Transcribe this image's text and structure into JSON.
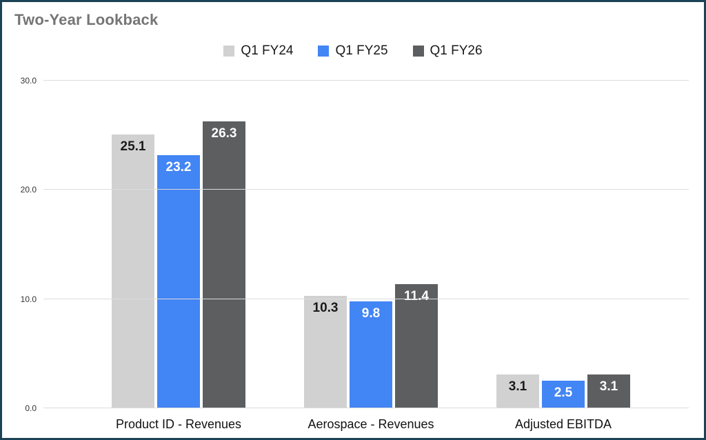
{
  "title": "Two-Year Lookback",
  "colors": {
    "border": "#1c4254",
    "title_text": "#757575",
    "gridline": "#dcdcdc",
    "axis_text": "#333333"
  },
  "chart_data": {
    "type": "bar",
    "title": "Two-Year Lookback",
    "categories": [
      "Product ID - Revenues",
      "Aerospace - Revenues",
      "Adjusted EBITDA"
    ],
    "series": [
      {
        "name": "Q1 FY24",
        "color": "#d1d1d1",
        "label_color": "#1a1a1a",
        "values": [
          25.1,
          10.3,
          3.1
        ]
      },
      {
        "name": "Q1 FY25",
        "color": "#4285f4",
        "label_color": "#ffffff",
        "values": [
          23.2,
          9.8,
          2.5
        ]
      },
      {
        "name": "Q1 FY26",
        "color": "#5c5e60",
        "label_color": "#ffffff",
        "values": [
          26.3,
          11.4,
          3.1
        ]
      }
    ],
    "y_ticks": [
      0,
      10,
      20,
      30
    ],
    "y_tick_labels": [
      "0.0",
      "10.0",
      "20.0",
      "30.0"
    ],
    "ylim": [
      0,
      30
    ],
    "grid": true,
    "legend_position": "top"
  }
}
